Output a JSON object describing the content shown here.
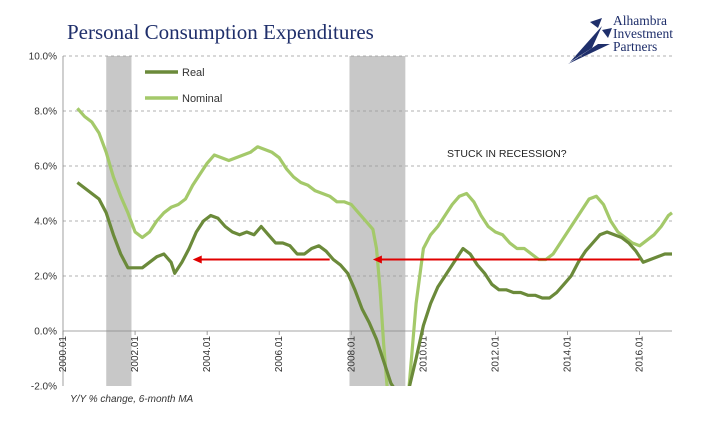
{
  "chart_data": {
    "type": "line",
    "title": "Personal Consumption Expenditures",
    "footnote": "Y/Y % change, 6-month MA",
    "ylim": [
      -2.0,
      10.0
    ],
    "y_ticks": [
      "10.0%",
      "8.0%",
      "6.0%",
      "4.0%",
      "2.0%",
      "0.0%",
      "-2.0%"
    ],
    "y_tick_values": [
      10,
      8,
      6,
      4,
      2,
      0,
      -2
    ],
    "xlim": [
      2000.0,
      2016.9
    ],
    "x_ticks": [
      "2000.01",
      "2002.01",
      "2004.01",
      "2006.01",
      "2008.01",
      "2010.01",
      "2012.01",
      "2014.01",
      "2016.01"
    ],
    "x_tick_values": [
      2000,
      2002,
      2004,
      2006,
      2008,
      2010,
      2012,
      2014,
      2016
    ],
    "grid": "horizontal dashed",
    "legend": {
      "placement": "top-left"
    },
    "recessions": [
      [
        2001.2,
        2001.9
      ],
      [
        2007.95,
        2009.5
      ]
    ],
    "annotation": "STUCK IN RECESSION?",
    "arrows": [
      {
        "from": [
          2007.4,
          2.6
        ],
        "to": [
          2003.6,
          2.6
        ]
      },
      {
        "from": [
          2016.0,
          2.6
        ],
        "to": [
          2008.6,
          2.6
        ]
      }
    ],
    "colors": {
      "real": "#6b8a3a",
      "nominal": "#a4c96a",
      "recession": "#c8c8c8",
      "arrow": "#e00000",
      "title": "#1f2f6b"
    },
    "series": [
      {
        "name": "Real",
        "points": [
          [
            2000.4,
            5.4
          ],
          [
            2000.6,
            5.2
          ],
          [
            2000.8,
            5.0
          ],
          [
            2001.0,
            4.8
          ],
          [
            2001.2,
            4.3
          ],
          [
            2001.4,
            3.5
          ],
          [
            2001.6,
            2.8
          ],
          [
            2001.8,
            2.3
          ],
          [
            2002.0,
            2.3
          ],
          [
            2002.2,
            2.3
          ],
          [
            2002.4,
            2.5
          ],
          [
            2002.6,
            2.7
          ],
          [
            2002.8,
            2.8
          ],
          [
            2003.0,
            2.5
          ],
          [
            2003.1,
            2.1
          ],
          [
            2003.3,
            2.5
          ],
          [
            2003.5,
            3.0
          ],
          [
            2003.7,
            3.6
          ],
          [
            2003.9,
            4.0
          ],
          [
            2004.1,
            4.2
          ],
          [
            2004.3,
            4.1
          ],
          [
            2004.5,
            3.8
          ],
          [
            2004.7,
            3.6
          ],
          [
            2004.9,
            3.5
          ],
          [
            2005.1,
            3.6
          ],
          [
            2005.3,
            3.5
          ],
          [
            2005.5,
            3.8
          ],
          [
            2005.7,
            3.5
          ],
          [
            2005.9,
            3.2
          ],
          [
            2006.1,
            3.2
          ],
          [
            2006.3,
            3.1
          ],
          [
            2006.5,
            2.8
          ],
          [
            2006.7,
            2.8
          ],
          [
            2006.9,
            3.0
          ],
          [
            2007.1,
            3.1
          ],
          [
            2007.3,
            2.9
          ],
          [
            2007.5,
            2.6
          ],
          [
            2007.7,
            2.4
          ],
          [
            2007.9,
            2.1
          ],
          [
            2008.1,
            1.5
          ],
          [
            2008.3,
            0.8
          ],
          [
            2008.5,
            0.3
          ],
          [
            2008.7,
            -0.3
          ],
          [
            2008.9,
            -1.1
          ],
          [
            2009.1,
            -1.9
          ],
          [
            2009.2,
            -2.1
          ],
          [
            2009.6,
            -2.1
          ],
          [
            2009.8,
            -1.0
          ],
          [
            2010.0,
            0.2
          ],
          [
            2010.2,
            1.0
          ],
          [
            2010.4,
            1.6
          ],
          [
            2010.6,
            2.0
          ],
          [
            2010.8,
            2.4
          ],
          [
            2011.0,
            2.8
          ],
          [
            2011.1,
            3.0
          ],
          [
            2011.3,
            2.8
          ],
          [
            2011.5,
            2.4
          ],
          [
            2011.7,
            2.1
          ],
          [
            2011.9,
            1.7
          ],
          [
            2012.1,
            1.5
          ],
          [
            2012.3,
            1.5
          ],
          [
            2012.5,
            1.4
          ],
          [
            2012.7,
            1.4
          ],
          [
            2012.9,
            1.3
          ],
          [
            2013.1,
            1.3
          ],
          [
            2013.3,
            1.2
          ],
          [
            2013.5,
            1.2
          ],
          [
            2013.7,
            1.4
          ],
          [
            2013.9,
            1.7
          ],
          [
            2014.1,
            2.0
          ],
          [
            2014.3,
            2.5
          ],
          [
            2014.5,
            2.9
          ],
          [
            2014.7,
            3.2
          ],
          [
            2014.9,
            3.5
          ],
          [
            2015.1,
            3.6
          ],
          [
            2015.3,
            3.5
          ],
          [
            2015.5,
            3.4
          ],
          [
            2015.7,
            3.2
          ],
          [
            2015.9,
            2.9
          ],
          [
            2016.1,
            2.5
          ],
          [
            2016.3,
            2.6
          ],
          [
            2016.5,
            2.7
          ],
          [
            2016.7,
            2.8
          ],
          [
            2016.9,
            2.8
          ]
        ]
      },
      {
        "name": "Nominal",
        "points": [
          [
            2000.4,
            8.1
          ],
          [
            2000.6,
            7.8
          ],
          [
            2000.8,
            7.6
          ],
          [
            2001.0,
            7.2
          ],
          [
            2001.2,
            6.5
          ],
          [
            2001.4,
            5.6
          ],
          [
            2001.6,
            4.9
          ],
          [
            2001.8,
            4.3
          ],
          [
            2002.0,
            3.6
          ],
          [
            2002.2,
            3.4
          ],
          [
            2002.4,
            3.6
          ],
          [
            2002.6,
            4.0
          ],
          [
            2002.8,
            4.3
          ],
          [
            2003.0,
            4.5
          ],
          [
            2003.2,
            4.6
          ],
          [
            2003.4,
            4.8
          ],
          [
            2003.6,
            5.3
          ],
          [
            2003.8,
            5.7
          ],
          [
            2004.0,
            6.1
          ],
          [
            2004.2,
            6.4
          ],
          [
            2004.4,
            6.3
          ],
          [
            2004.6,
            6.2
          ],
          [
            2004.8,
            6.3
          ],
          [
            2005.0,
            6.4
          ],
          [
            2005.2,
            6.5
          ],
          [
            2005.4,
            6.7
          ],
          [
            2005.6,
            6.6
          ],
          [
            2005.8,
            6.5
          ],
          [
            2006.0,
            6.3
          ],
          [
            2006.2,
            5.9
          ],
          [
            2006.4,
            5.6
          ],
          [
            2006.6,
            5.4
          ],
          [
            2006.8,
            5.3
          ],
          [
            2007.0,
            5.1
          ],
          [
            2007.2,
            5.0
          ],
          [
            2007.4,
            4.9
          ],
          [
            2007.6,
            4.7
          ],
          [
            2007.8,
            4.7
          ],
          [
            2008.0,
            4.6
          ],
          [
            2008.2,
            4.3
          ],
          [
            2008.4,
            4.0
          ],
          [
            2008.6,
            3.7
          ],
          [
            2008.7,
            3.0
          ],
          [
            2008.8,
            1.5
          ],
          [
            2008.9,
            -0.5
          ],
          [
            2009.0,
            -2.1
          ],
          [
            2009.6,
            -2.1
          ],
          [
            2009.8,
            1.0
          ],
          [
            2010.0,
            3.0
          ],
          [
            2010.2,
            3.5
          ],
          [
            2010.4,
            3.8
          ],
          [
            2010.6,
            4.2
          ],
          [
            2010.8,
            4.6
          ],
          [
            2011.0,
            4.9
          ],
          [
            2011.2,
            5.0
          ],
          [
            2011.4,
            4.7
          ],
          [
            2011.6,
            4.2
          ],
          [
            2011.8,
            3.8
          ],
          [
            2012.0,
            3.6
          ],
          [
            2012.2,
            3.5
          ],
          [
            2012.4,
            3.2
          ],
          [
            2012.6,
            3.0
          ],
          [
            2012.8,
            3.0
          ],
          [
            2013.0,
            2.8
          ],
          [
            2013.2,
            2.6
          ],
          [
            2013.4,
            2.6
          ],
          [
            2013.6,
            2.8
          ],
          [
            2013.8,
            3.2
          ],
          [
            2014.0,
            3.6
          ],
          [
            2014.2,
            4.0
          ],
          [
            2014.4,
            4.4
          ],
          [
            2014.6,
            4.8
          ],
          [
            2014.8,
            4.9
          ],
          [
            2015.0,
            4.6
          ],
          [
            2015.2,
            4.0
          ],
          [
            2015.4,
            3.6
          ],
          [
            2015.6,
            3.4
          ],
          [
            2015.8,
            3.2
          ],
          [
            2016.0,
            3.1
          ],
          [
            2016.2,
            3.3
          ],
          [
            2016.4,
            3.5
          ],
          [
            2016.6,
            3.8
          ],
          [
            2016.8,
            4.2
          ],
          [
            2016.9,
            4.3
          ]
        ]
      }
    ]
  },
  "logo": {
    "lines": [
      "Alhambra",
      "Investment",
      "Partners"
    ],
    "icon": "star-compass-icon"
  }
}
